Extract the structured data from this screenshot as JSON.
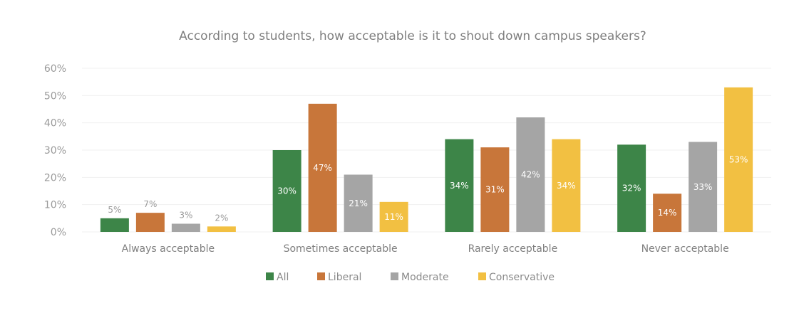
{
  "chart_data": {
    "type": "bar",
    "title": "According to students, how acceptable is it to shout down campus speakers?",
    "xlabel": "",
    "ylabel": "",
    "ylim": [
      0,
      60
    ],
    "yticks": [
      "0%",
      "10%",
      "20%",
      "30%",
      "40%",
      "50%",
      "60%"
    ],
    "ytick_values": [
      0,
      10,
      20,
      30,
      40,
      50,
      60
    ],
    "grid": true,
    "legend_position": "bottom",
    "categories": [
      "Always acceptable",
      "Sometimes acceptable",
      "Rarely acceptable",
      "Never acceptable"
    ],
    "series": [
      {
        "name": "All",
        "color": "#3d8548",
        "values": [
          5,
          30,
          34,
          32
        ],
        "labels": [
          "5%",
          "30%",
          "34%",
          "32%"
        ]
      },
      {
        "name": "Liberal",
        "color": "#c8763a",
        "values": [
          7,
          47,
          31,
          14
        ],
        "labels": [
          "7%",
          "47%",
          "31%",
          "14%"
        ]
      },
      {
        "name": "Moderate",
        "color": "#a5a5a5",
        "values": [
          3,
          21,
          42,
          33
        ],
        "labels": [
          "3%",
          "21%",
          "42%",
          "33%"
        ]
      },
      {
        "name": "Conservative",
        "color": "#f2c042",
        "values": [
          2,
          11,
          34,
          53
        ],
        "labels": [
          "2%",
          "11%",
          "34%",
          "53%"
        ]
      }
    ]
  }
}
